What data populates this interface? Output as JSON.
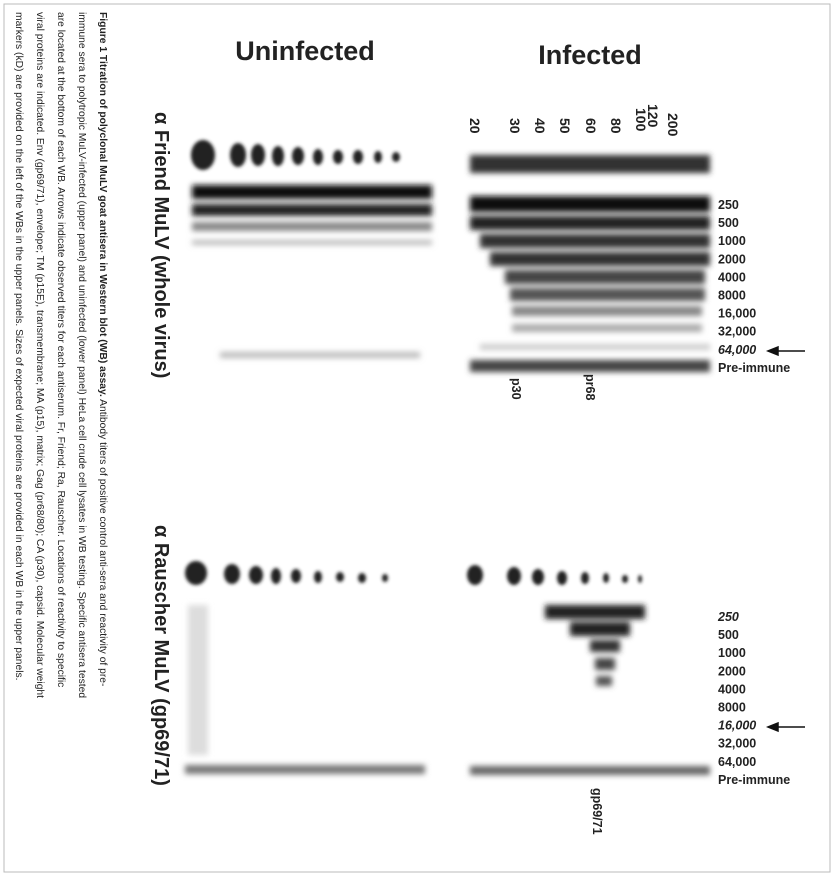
{
  "header": {
    "uninfected": "Uninfected",
    "infected": "Infected"
  },
  "panels": [
    {
      "title": "α Friend MuLV (whole virus)",
      "titers": [
        "250",
        "500",
        "1000",
        "2000",
        "4000",
        "8000",
        "16,000",
        "32,000",
        "64,000",
        "Pre-immune"
      ],
      "proteins": [
        "p30",
        "pr68"
      ]
    },
    {
      "title": "α Rauscher MuLV (gp69/71)",
      "titers": [
        "250",
        "500",
        "1000",
        "2000",
        "4000",
        "8000",
        "16,000",
        "32,000",
        "64,000",
        "Pre-immune"
      ],
      "proteins": [
        "gp69/71"
      ]
    }
  ],
  "markers": [
    "20",
    "30",
    "40",
    "50",
    "60",
    "80",
    "100",
    "120",
    "200"
  ],
  "caption": {
    "label": "Figure 1 Titration of polyclonal MuLV goat antisera in Western blot (WB) assay.",
    "lines": [
      " Antibody titers of positive control anti-sera and reactivity of pre-",
      "immune sera to polytropic MuLV-infected (upper panel) and uninfected (lower panel) HeLa cell crude cell lysates in WB testing. Specific antisera tested",
      "are located at the bottom of each WB. Arrows indicate observed titers for each antiserum. Fr, Friend; Ra, Rauscher. Locations of reactivity to specific",
      "viral proteins are indicated. Env (gp69/71), envelope; TM (p15E), transmembrane; MA (p15), matrix; Gag (pr68/80); CA (p30), capsid. Molecular weight",
      "markers (kD) are provided on the left of the WBs in the upper panels. Sizes of expected viral proteins are provided in each WB in the upper panels."
    ]
  }
}
